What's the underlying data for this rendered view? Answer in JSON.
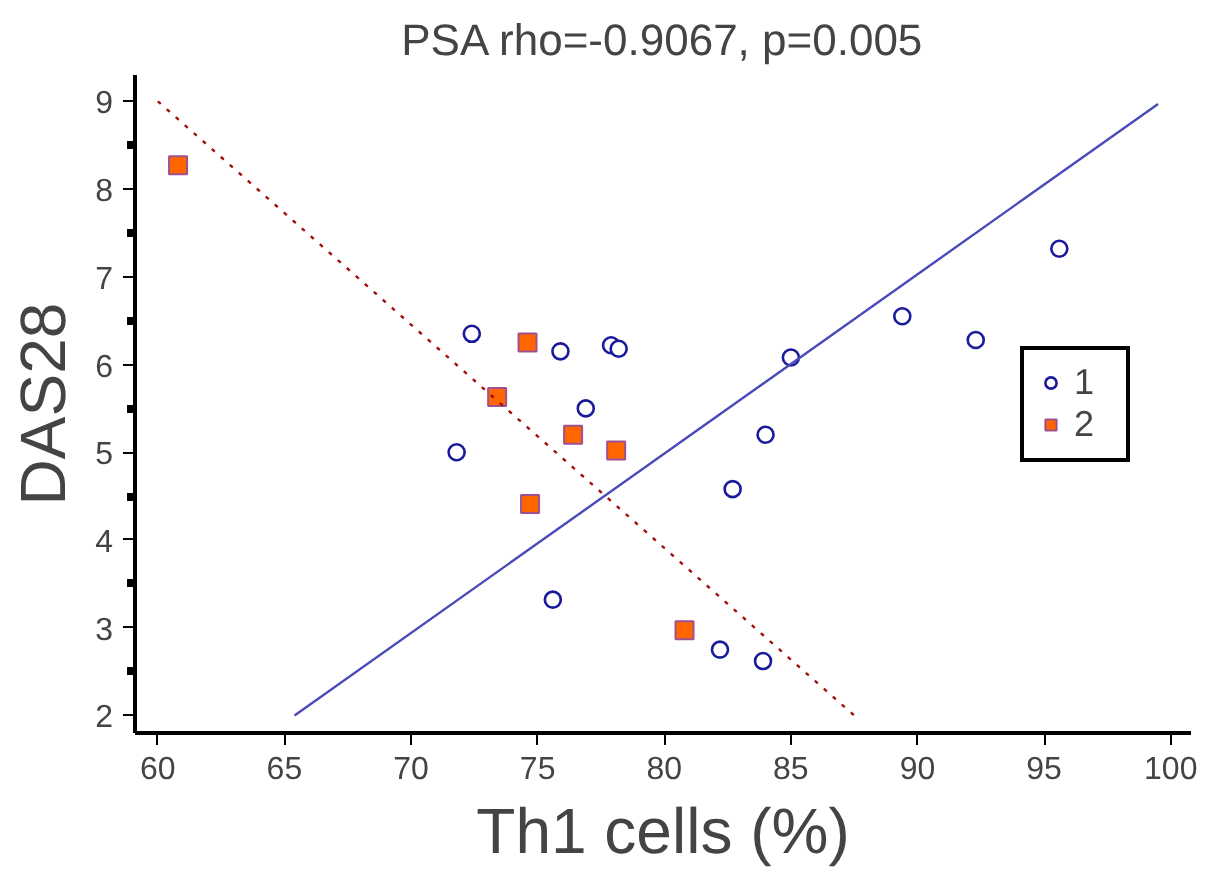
{
  "chart_data": {
    "type": "scatter",
    "title": "PSA rho=-0.9067, p=0.005",
    "xlabel": "Th1 cells (%)",
    "ylabel": "DAS28",
    "xlim": [
      59.1,
      100.8
    ],
    "ylim": [
      1.8,
      9.3
    ],
    "xticks": [
      60,
      65,
      70,
      75,
      80,
      85,
      90,
      95,
      100
    ],
    "yticks": [
      2,
      3,
      4,
      5,
      6,
      7,
      8,
      9
    ],
    "grid": false,
    "legend": "right",
    "series": [
      {
        "name": "1",
        "marker": "circle",
        "color": "#1a1a9c",
        "x": [
          72.4,
          75.9,
          77.9,
          78.2,
          76.9,
          71.8,
          85.0,
          84.0,
          82.7,
          89.4,
          92.3,
          95.6,
          75.6,
          82.2,
          83.9
        ],
        "values": [
          6.35,
          6.15,
          6.22,
          6.18,
          5.5,
          5.0,
          6.08,
          5.2,
          4.58,
          6.55,
          6.28,
          7.32,
          3.32,
          2.75,
          2.62
        ]
      },
      {
        "name": "2",
        "marker": "square",
        "color": "#ff6600",
        "x": [
          60.8,
          74.6,
          73.4,
          76.4,
          78.1,
          74.7,
          80.8
        ],
        "values": [
          8.27,
          6.25,
          5.63,
          5.2,
          5.02,
          4.41,
          2.97
        ]
      },
      {
        "type": "line",
        "color": "#4a4ab8",
        "line_style": "solid",
        "x": [
          65.4,
          99.5
        ],
        "values": [
          2.0,
          8.97
        ]
      },
      {
        "type": "line",
        "color": "#a01010",
        "line_style": "dotted",
        "x": [
          60.0,
          87.5
        ],
        "values": [
          9.0,
          2.0
        ]
      }
    ]
  }
}
